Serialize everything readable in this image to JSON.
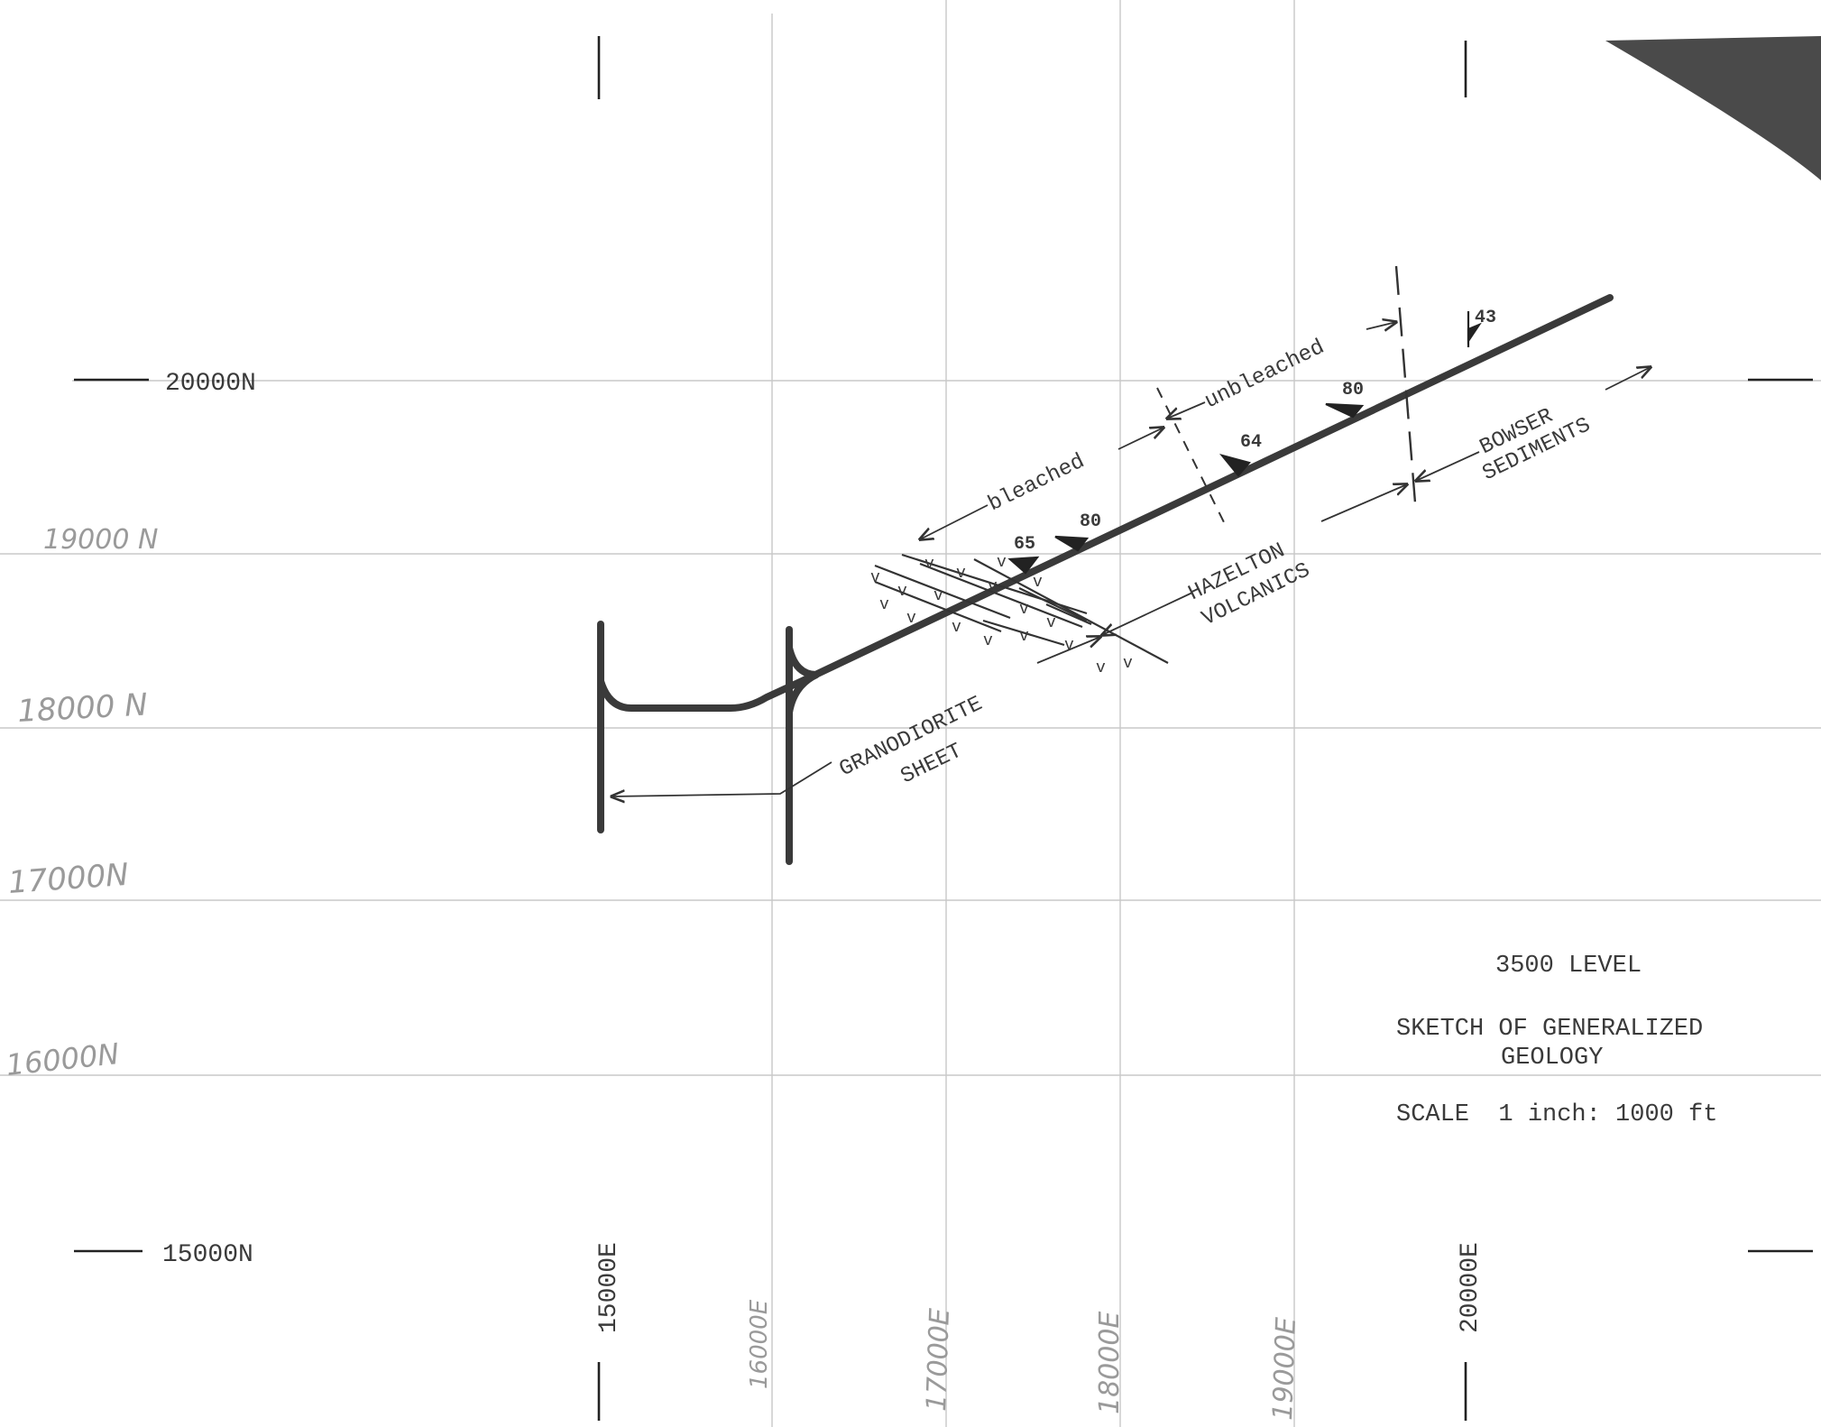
{
  "title_block": {
    "level": "3500 LEVEL",
    "title_line1": "SKETCH OF GENERALIZED",
    "title_line2": "GEOLOGY",
    "scale": "SCALE  1 inch: 1000 ft"
  },
  "grid": {
    "northings": {
      "n20000": "20000N",
      "n19000": "19000 N",
      "n18000": "18000 N",
      "n17000": "17000N",
      "n16000": "16000N",
      "n15000": "15000N"
    },
    "eastings": {
      "e15000": "15000E",
      "e16000": "16000E",
      "e17000": "17000E",
      "e18000": "18000E",
      "e19000": "19000E",
      "e20000": "20000E"
    }
  },
  "units": {
    "granodiorite_line1": "GRANODIORITE",
    "granodiorite_line2": "SHEET",
    "hazelton_line1": "HAZELTON",
    "hazelton_line2": "VOLCANICS",
    "bowser_line1": "BOWSER",
    "bowser_line2": "SEDIMENTS",
    "bleached": "bleached",
    "unbleached": "unbleached"
  },
  "dips": {
    "d65": "65",
    "d80a": "80",
    "d64": "64",
    "d80b": "80",
    "d43": "43"
  },
  "colors": {
    "workings": "#3a3a3a",
    "grid": "#c8c8c8",
    "typed_text": "#3a3a3a",
    "hand_text": "#9a9a9a"
  }
}
